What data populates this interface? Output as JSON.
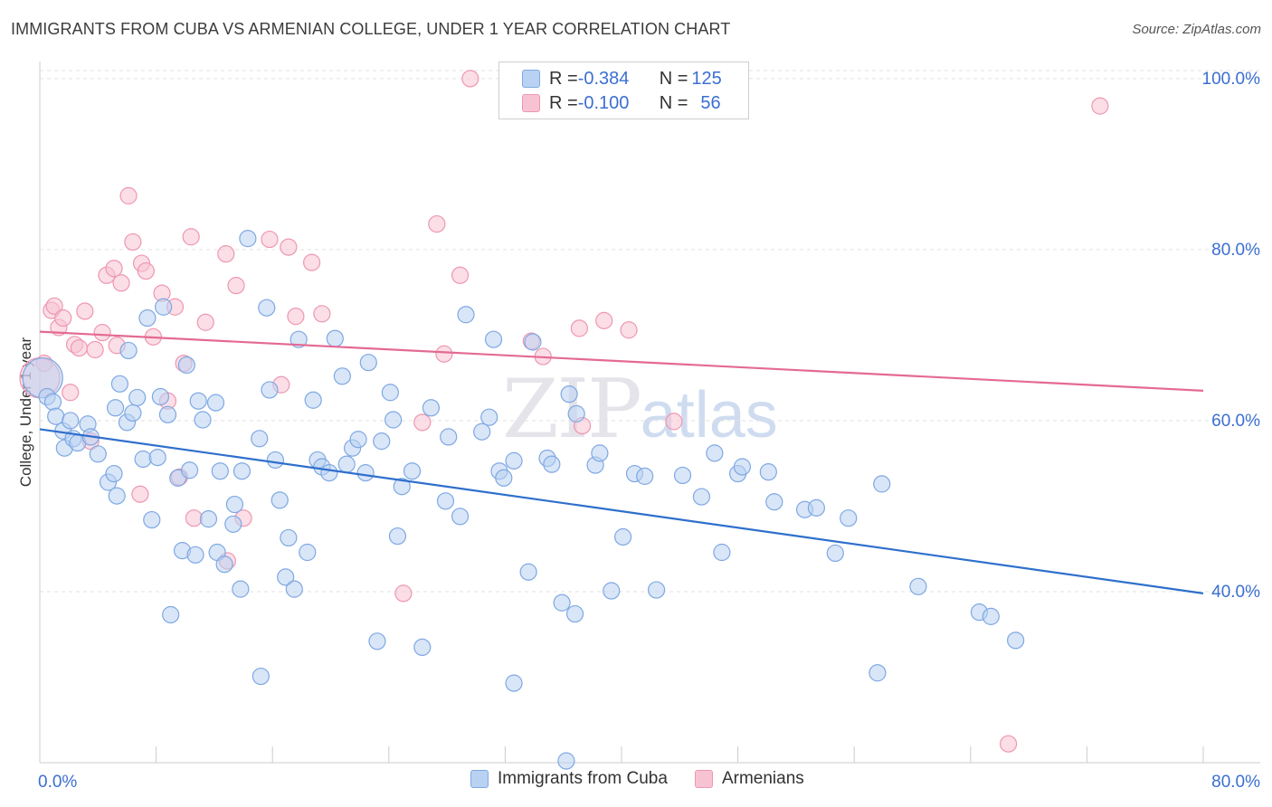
{
  "title": "IMMIGRANTS FROM CUBA VS ARMENIAN COLLEGE, UNDER 1 YEAR CORRELATION CHART",
  "source": "Source: ZipAtlas.com",
  "watermark": {
    "zip": "ZIP",
    "atlas": "atlas"
  },
  "legend": {
    "rows": [
      {
        "r_label": "R = ",
        "r_value": "-0.384",
        "n_label": "N = ",
        "n_value": "125"
      },
      {
        "r_label": "R = ",
        "r_value": "-0.100",
        "n_label": "N = ",
        "n_value": "56"
      }
    ]
  },
  "colors": {
    "blue_fill": "#b9d2f3",
    "blue_stroke": "#7ea8e2",
    "blue_line": "#2e6fcc",
    "pink_fill": "#f7c3d2",
    "pink_stroke": "#ee97b2",
    "pink_line": "#e46a93",
    "grid": "#e2e2e2",
    "tick_label": "#3b6fd1"
  },
  "chart_data": {
    "type": "scatter",
    "title": "IMMIGRANTS FROM CUBA VS ARMENIAN COLLEGE, UNDER 1 YEAR CORRELATION CHART",
    "xlabel": "",
    "ylabel": "College, Under 1 year",
    "xlim": [
      0,
      80
    ],
    "ylim": [
      20,
      102
    ],
    "x_tick_labels": [
      "0.0%",
      "80.0%"
    ],
    "y_ticks": [
      40,
      60,
      80,
      100
    ],
    "y_tick_labels": [
      "40.0%",
      "60.0%",
      "80.0%",
      "100.0%"
    ],
    "grid": true,
    "legend_position": "top-center",
    "series": [
      {
        "name": "Immigrants from Cuba",
        "R": -0.384,
        "N": 125,
        "trend": {
          "x": [
            0,
            80
          ],
          "y": [
            59.0,
            39.8
          ]
        },
        "points": [
          [
            0.2,
            65.0
          ],
          [
            0.5,
            62.8
          ],
          [
            0.9,
            62.2
          ],
          [
            1.1,
            60.5
          ],
          [
            1.6,
            58.8
          ],
          [
            1.7,
            56.8
          ],
          [
            2.1,
            60.0
          ],
          [
            2.3,
            57.9
          ],
          [
            2.6,
            57.4
          ],
          [
            3.3,
            59.6
          ],
          [
            3.5,
            58.1
          ],
          [
            4.0,
            56.1
          ],
          [
            4.7,
            52.8
          ],
          [
            5.2,
            61.5
          ],
          [
            5.1,
            53.8
          ],
          [
            5.3,
            51.2
          ],
          [
            5.5,
            64.3
          ],
          [
            6.0,
            59.8
          ],
          [
            6.1,
            68.2
          ],
          [
            6.4,
            60.9
          ],
          [
            6.7,
            62.7
          ],
          [
            7.1,
            55.5
          ],
          [
            7.4,
            72.0
          ],
          [
            7.7,
            48.4
          ],
          [
            8.1,
            55.7
          ],
          [
            8.3,
            62.8
          ],
          [
            8.5,
            73.3
          ],
          [
            8.8,
            60.7
          ],
          [
            9.0,
            37.3
          ],
          [
            9.5,
            53.3
          ],
          [
            9.8,
            44.8
          ],
          [
            10.1,
            66.5
          ],
          [
            10.3,
            54.2
          ],
          [
            10.7,
            44.3
          ],
          [
            10.9,
            62.3
          ],
          [
            11.2,
            60.1
          ],
          [
            11.6,
            48.5
          ],
          [
            12.1,
            62.1
          ],
          [
            12.2,
            44.6
          ],
          [
            12.4,
            54.1
          ],
          [
            12.7,
            43.2
          ],
          [
            13.3,
            47.9
          ],
          [
            13.4,
            50.2
          ],
          [
            13.8,
            40.3
          ],
          [
            13.9,
            54.1
          ],
          [
            14.3,
            81.3
          ],
          [
            15.1,
            57.9
          ],
          [
            15.2,
            30.1
          ],
          [
            15.6,
            73.2
          ],
          [
            15.8,
            63.6
          ],
          [
            16.2,
            55.4
          ],
          [
            16.5,
            50.7
          ],
          [
            16.9,
            41.7
          ],
          [
            17.1,
            46.3
          ],
          [
            17.5,
            40.3
          ],
          [
            17.8,
            69.5
          ],
          [
            18.4,
            44.6
          ],
          [
            18.8,
            62.4
          ],
          [
            19.1,
            55.4
          ],
          [
            19.4,
            54.6
          ],
          [
            19.9,
            53.9
          ],
          [
            20.3,
            69.6
          ],
          [
            20.8,
            65.2
          ],
          [
            21.1,
            54.9
          ],
          [
            21.5,
            56.8
          ],
          [
            21.9,
            57.8
          ],
          [
            22.4,
            53.9
          ],
          [
            22.6,
            66.8
          ],
          [
            23.2,
            34.2
          ],
          [
            23.5,
            57.6
          ],
          [
            24.1,
            63.3
          ],
          [
            24.3,
            60.1
          ],
          [
            24.6,
            46.5
          ],
          [
            24.9,
            52.3
          ],
          [
            25.6,
            54.1
          ],
          [
            26.3,
            33.5
          ],
          [
            26.9,
            61.5
          ],
          [
            27.9,
            50.6
          ],
          [
            28.1,
            58.1
          ],
          [
            28.9,
            48.8
          ],
          [
            29.3,
            72.4
          ],
          [
            30.4,
            58.7
          ],
          [
            30.9,
            60.4
          ],
          [
            31.2,
            69.5
          ],
          [
            31.6,
            54.1
          ],
          [
            31.9,
            53.3
          ],
          [
            32.6,
            55.3
          ],
          [
            32.6,
            29.3
          ],
          [
            33.6,
            42.3
          ],
          [
            33.9,
            69.2
          ],
          [
            34.9,
            55.6
          ],
          [
            35.2,
            54.9
          ],
          [
            35.9,
            38.7
          ],
          [
            36.4,
            63.1
          ],
          [
            36.8,
            37.4
          ],
          [
            36.9,
            60.8
          ],
          [
            38.2,
            54.8
          ],
          [
            38.5,
            56.2
          ],
          [
            39.3,
            40.1
          ],
          [
            40.1,
            46.4
          ],
          [
            40.9,
            53.8
          ],
          [
            41.6,
            53.5
          ],
          [
            42.4,
            40.2
          ],
          [
            44.2,
            53.6
          ],
          [
            45.5,
            51.1
          ],
          [
            46.4,
            56.2
          ],
          [
            46.9,
            44.6
          ],
          [
            48.0,
            53.8
          ],
          [
            48.3,
            54.6
          ],
          [
            50.1,
            54.0
          ],
          [
            50.5,
            50.5
          ],
          [
            52.6,
            49.6
          ],
          [
            53.4,
            49.8
          ],
          [
            54.7,
            44.5
          ],
          [
            55.6,
            48.6
          ],
          [
            57.6,
            30.5
          ],
          [
            57.9,
            52.6
          ],
          [
            60.4,
            40.6
          ],
          [
            64.6,
            37.6
          ],
          [
            65.4,
            37.1
          ],
          [
            67.1,
            34.3
          ],
          [
            36.2,
            20.2
          ]
        ]
      },
      {
        "name": "Armenians",
        "R": -0.1,
        "N": 56,
        "trend": {
          "x": [
            0,
            80
          ],
          "y": [
            70.4,
            63.5
          ]
        },
        "points": [
          [
            0.3,
            66.7
          ],
          [
            0.8,
            72.9
          ],
          [
            1.0,
            73.4
          ],
          [
            1.3,
            70.9
          ],
          [
            1.6,
            72.0
          ],
          [
            2.1,
            63.3
          ],
          [
            2.4,
            68.9
          ],
          [
            2.7,
            68.5
          ],
          [
            3.1,
            72.8
          ],
          [
            3.5,
            57.6
          ],
          [
            3.8,
            68.3
          ],
          [
            4.3,
            70.3
          ],
          [
            4.6,
            77.0
          ],
          [
            5.1,
            77.8
          ],
          [
            5.3,
            68.8
          ],
          [
            5.6,
            76.1
          ],
          [
            6.1,
            86.3
          ],
          [
            6.4,
            80.9
          ],
          [
            6.9,
            51.4
          ],
          [
            7.0,
            78.4
          ],
          [
            7.3,
            77.5
          ],
          [
            7.8,
            69.8
          ],
          [
            8.4,
            74.9
          ],
          [
            8.8,
            62.3
          ],
          [
            9.3,
            73.3
          ],
          [
            9.6,
            53.4
          ],
          [
            9.9,
            66.7
          ],
          [
            10.4,
            81.5
          ],
          [
            10.6,
            48.6
          ],
          [
            11.4,
            71.5
          ],
          [
            12.8,
            79.5
          ],
          [
            12.9,
            43.6
          ],
          [
            13.5,
            75.8
          ],
          [
            14.0,
            48.6
          ],
          [
            15.8,
            81.2
          ],
          [
            16.6,
            64.2
          ],
          [
            17.1,
            80.3
          ],
          [
            17.6,
            72.2
          ],
          [
            18.7,
            78.5
          ],
          [
            19.4,
            72.5
          ],
          [
            25.0,
            39.8
          ],
          [
            26.3,
            59.8
          ],
          [
            27.3,
            83.0
          ],
          [
            27.8,
            67.8
          ],
          [
            28.9,
            77.0
          ],
          [
            29.6,
            100.0
          ],
          [
            33.8,
            69.3
          ],
          [
            34.6,
            67.5
          ],
          [
            37.1,
            70.8
          ],
          [
            37.3,
            59.4
          ],
          [
            38.8,
            71.7
          ],
          [
            40.5,
            70.6
          ],
          [
            43.6,
            59.9
          ],
          [
            66.6,
            22.2
          ],
          [
            72.9,
            96.8
          ],
          [
            0.0,
            65.0
          ]
        ]
      }
    ]
  }
}
